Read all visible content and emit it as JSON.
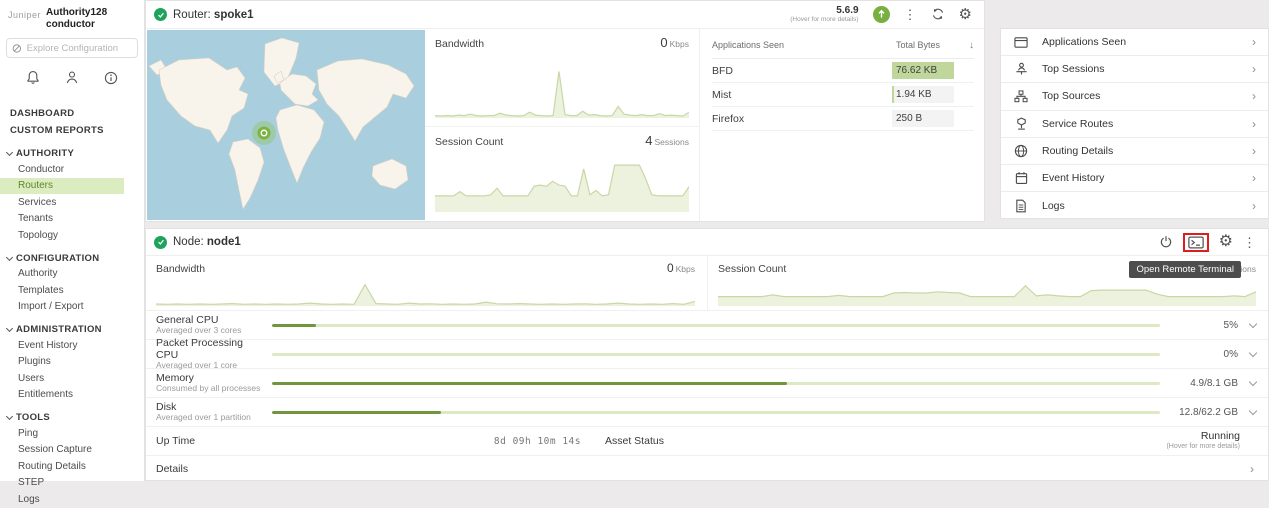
{
  "branding": {
    "logo": "Juniper",
    "product": "Authority128",
    "subproduct": "conductor"
  },
  "icons": {
    "kebab": "⋮",
    "gear": "⚙",
    "sort_desc": "↓",
    "chevron_right": "›"
  },
  "colors": {
    "accent_green": "#76b041",
    "selected_bg": "#dcecc1",
    "selected_text": "#5c8727",
    "chart_stroke": "#c7d8a4",
    "chart_fill": "#edf2df",
    "bar_track": "#dde8c5",
    "bar_fill": "#70953c",
    "apps_bar": "#bfd79b",
    "status_ok": "#1fa35c",
    "map_ocean": "#a9cedd",
    "map_land": "#f8f4ec",
    "annotation_red": "#e01d1d",
    "tooltip_bg": "#4d4d4d"
  },
  "sidebar": {
    "search_placeholder": "Explore Configuration",
    "top_items": [
      "DASHBOARD",
      "CUSTOM REPORTS"
    ],
    "sections": [
      {
        "label": "AUTHORITY",
        "items": [
          {
            "label": "Conductor"
          },
          {
            "label": "Routers",
            "selected": true
          },
          {
            "label": "Services"
          },
          {
            "label": "Tenants"
          },
          {
            "label": "Topology"
          }
        ]
      },
      {
        "label": "CONFIGURATION",
        "items": [
          {
            "label": "Authority"
          },
          {
            "label": "Templates"
          },
          {
            "label": "Import / Export"
          }
        ]
      },
      {
        "label": "ADMINISTRATION",
        "items": [
          {
            "label": "Event History"
          },
          {
            "label": "Plugins"
          },
          {
            "label": "Users"
          },
          {
            "label": "Entitlements"
          }
        ]
      },
      {
        "label": "TOOLS",
        "items": [
          {
            "label": "Ping"
          },
          {
            "label": "Session Capture"
          },
          {
            "label": "Routing Details"
          },
          {
            "label": "STEP"
          },
          {
            "label": "Logs"
          }
        ]
      }
    ]
  },
  "router_panel": {
    "title_prefix": "Router:",
    "title_name": "spoke1",
    "version": "5.6.9",
    "version_hint": "(Hover for more details)",
    "bandwidth": {
      "label": "Bandwidth",
      "value": "0",
      "unit": "Kbps"
    },
    "sessions": {
      "label": "Session Count",
      "value": "4",
      "unit": "Sessions"
    },
    "apps_table": {
      "col_app": "Applications Seen",
      "col_bytes": "Total Bytes",
      "rows": [
        {
          "app": "BFD",
          "bytes": "76.62 KB",
          "fill": 100
        },
        {
          "app": "Mist",
          "bytes": "1.94 KB",
          "fill": 3
        },
        {
          "app": "Firefox",
          "bytes": "250 B",
          "fill": 0
        }
      ]
    }
  },
  "quick_links": [
    {
      "label": "Applications Seen"
    },
    {
      "label": "Top Sessions"
    },
    {
      "label": "Top Sources"
    },
    {
      "label": "Service Routes"
    },
    {
      "label": "Routing Details"
    },
    {
      "label": "Event History"
    },
    {
      "label": "Logs"
    }
  ],
  "node_panel": {
    "title_prefix": "Node:",
    "title_name": "node1",
    "tooltip": "Open Remote Terminal",
    "bandwidth": {
      "label": "Bandwidth",
      "value": "0",
      "unit": "Kbps"
    },
    "sessions": {
      "label": "Session Count",
      "value": "4",
      "unit": "Sessions"
    },
    "metrics": [
      {
        "name": "General CPU",
        "desc": "Averaged over 3 cores",
        "value": "5%",
        "fill": 5
      },
      {
        "name": "Packet Processing CPU",
        "desc": "Averaged over 1 core",
        "value": "0%",
        "fill": 0
      },
      {
        "name": "Memory",
        "desc": "Consumed by all processes",
        "value": "4.9/8.1 GB",
        "fill": 58
      },
      {
        "name": "Disk",
        "desc": "Averaged over 1 partition",
        "value": "12.8/62.2 GB",
        "fill": 19
      }
    ],
    "uptime": {
      "label": "Up Time",
      "value": "8d 09h 10m 14s"
    },
    "asset": {
      "label": "Asset Status",
      "value": "Running",
      "hint": "(Hover for more details)"
    },
    "details_label": "Details"
  },
  "chart_data": [
    {
      "type": "area",
      "title": "Router Bandwidth",
      "ylabel": "Kbps",
      "current": "0 Kbps",
      "values": [
        3,
        2,
        3,
        2,
        4,
        3,
        6,
        3,
        2,
        3,
        3,
        8,
        4,
        3,
        2,
        3,
        10,
        4,
        3,
        2,
        3,
        95,
        5,
        3,
        3,
        12,
        4,
        5,
        3,
        2,
        3,
        22,
        6,
        4,
        3,
        5,
        3,
        3,
        7,
        3,
        4,
        3,
        2,
        10
      ]
    },
    {
      "type": "area",
      "title": "Router Session Count",
      "ylabel": "Sessions",
      "current": "4 Sessions",
      "values": [
        28,
        28,
        28,
        28,
        36,
        28,
        28,
        28,
        28,
        30,
        42,
        28,
        28,
        28,
        28,
        28,
        46,
        48,
        46,
        55,
        48,
        46,
        28,
        28,
        78,
        30,
        38,
        28,
        30,
        85,
        85,
        85,
        85,
        85,
        60,
        30,
        28,
        28,
        28,
        28,
        28,
        45
      ]
    },
    {
      "type": "area",
      "title": "Node Bandwidth",
      "ylabel": "Kbps",
      "current": "0 Kbps",
      "values": [
        4,
        3,
        4,
        3,
        4,
        3,
        4,
        6,
        3,
        4,
        3,
        4,
        3,
        4,
        8,
        4,
        3,
        4,
        3,
        85,
        6,
        4,
        3,
        8,
        4,
        5,
        3,
        4,
        3,
        4,
        12,
        5,
        4,
        6,
        4,
        3,
        4,
        3,
        4,
        5,
        3,
        4,
        8,
        4,
        3,
        4,
        3,
        6,
        3,
        15
      ]
    },
    {
      "type": "area",
      "title": "Node Session Count",
      "ylabel": "Sessions",
      "current": "4 Sessions",
      "values": [
        35,
        35,
        35,
        35,
        35,
        42,
        35,
        35,
        35,
        35,
        35,
        40,
        35,
        35,
        35,
        35,
        50,
        52,
        50,
        50,
        55,
        52,
        50,
        35,
        35,
        35,
        35,
        35,
        80,
        38,
        42,
        38,
        35,
        35,
        60,
        62,
        62,
        62,
        62,
        62,
        45,
        35,
        35,
        35,
        35,
        35,
        35,
        38,
        35,
        55
      ]
    }
  ]
}
